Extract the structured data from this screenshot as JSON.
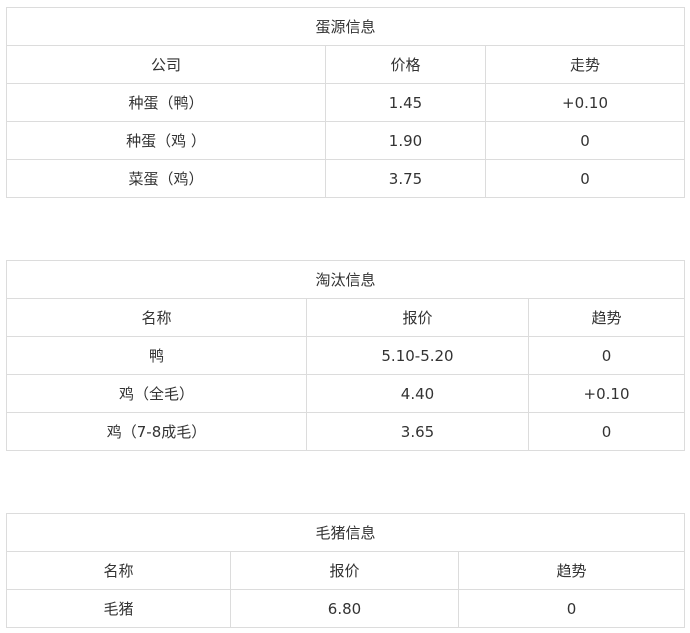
{
  "tables": [
    {
      "title": "蛋源信息",
      "headers": [
        "公司",
        "价格",
        "走势"
      ],
      "rows": [
        [
          "种蛋（鸭）",
          "1.45",
          "+0.10"
        ],
        [
          "种蛋（鸡 ）",
          "1.90",
          "0"
        ],
        [
          "菜蛋（鸡）",
          "3.75",
          "0"
        ]
      ]
    },
    {
      "title": "淘汰信息",
      "headers": [
        "名称",
        "报价",
        "趋势"
      ],
      "rows": [
        [
          "鸭",
          "5.10-5.20",
          "0"
        ],
        [
          "鸡（全毛）",
          "4.40",
          "+0.10"
        ],
        [
          "鸡（7-8成毛）",
          "3.65",
          "0"
        ]
      ]
    },
    {
      "title": "毛猪信息",
      "headers": [
        "名称",
        "报价",
        "趋势"
      ],
      "rows": [
        [
          "毛猪",
          "6.80",
          "0"
        ]
      ]
    }
  ]
}
